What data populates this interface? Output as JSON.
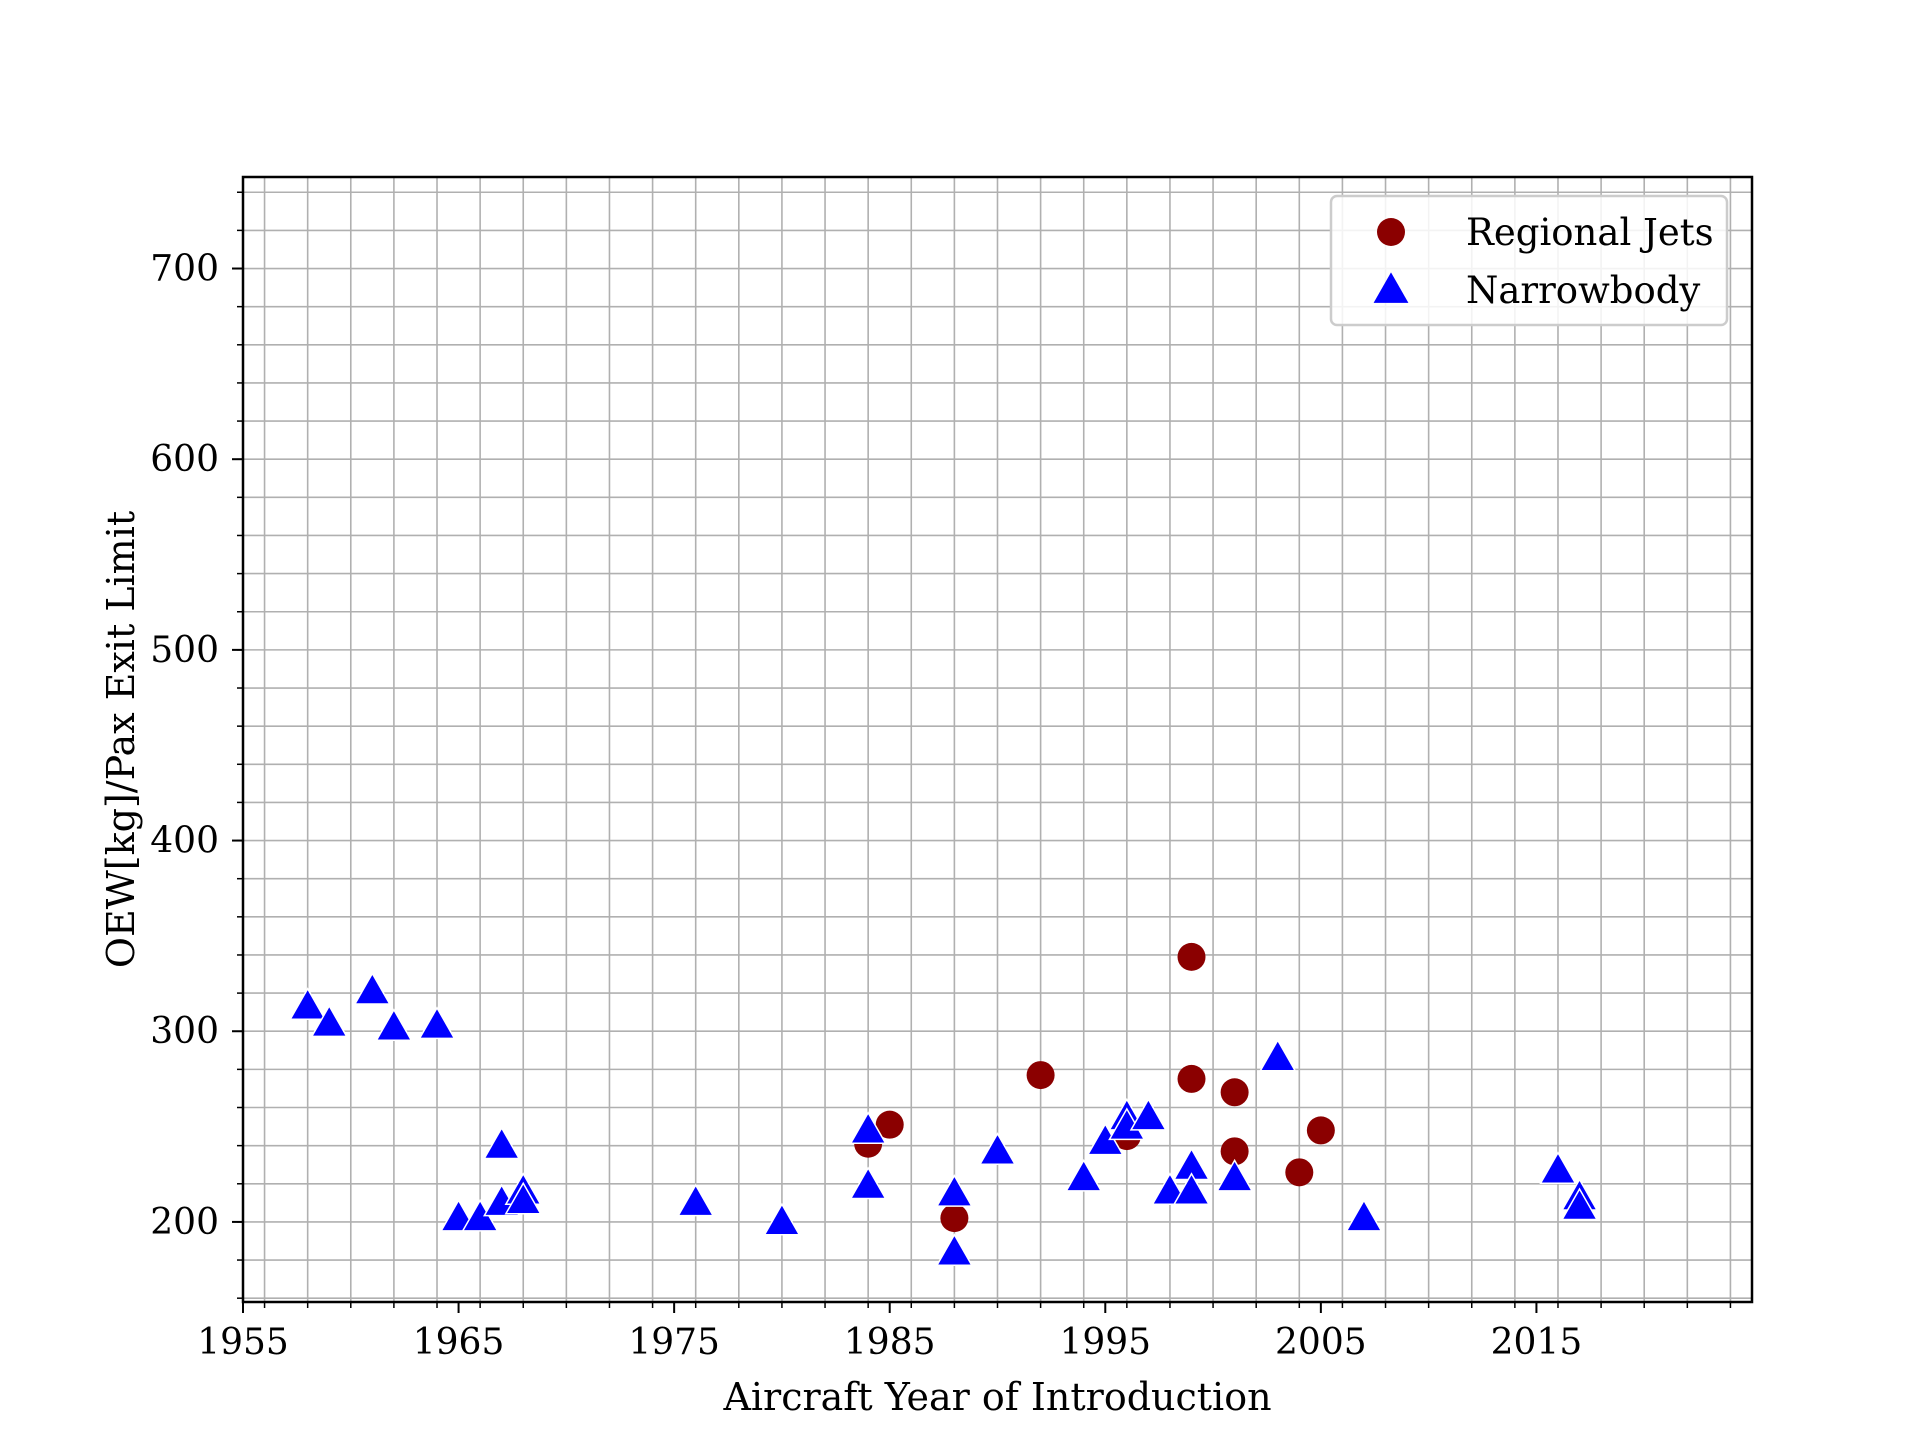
{
  "chart_data": {
    "type": "scatter",
    "title": "",
    "xlabel": "Aircraft Year of Introduction",
    "ylabel": "OEW[kg]/Pax Exit Limit",
    "xlim": [
      1955,
      2025
    ],
    "ylim": [
      158,
      748
    ],
    "x_ticks": [
      1955,
      1965,
      1975,
      1985,
      1995,
      2005,
      2015
    ],
    "y_ticks": [
      200,
      300,
      400,
      500,
      600,
      700
    ],
    "grid": true,
    "legend_position": "top-right",
    "series": [
      {
        "name": "Regional Jets",
        "marker": "circle",
        "color": "#8b0000",
        "points": [
          [
            1984,
            241
          ],
          [
            1985,
            251
          ],
          [
            1988,
            202
          ],
          [
            1992,
            277
          ],
          [
            1996,
            245
          ],
          [
            1999,
            339
          ],
          [
            1999,
            275
          ],
          [
            2001,
            268
          ],
          [
            2001,
            237
          ],
          [
            2004,
            226
          ],
          [
            2005,
            248
          ]
        ]
      },
      {
        "name": "Narrowbody",
        "marker": "triangle",
        "color": "#0000ff",
        "points": [
          [
            1958,
            313
          ],
          [
            1959,
            304
          ],
          [
            1961,
            321
          ],
          [
            1962,
            302
          ],
          [
            1964,
            303
          ],
          [
            1965,
            202
          ],
          [
            1966,
            202
          ],
          [
            1967,
            240
          ],
          [
            1967,
            210
          ],
          [
            1968,
            216
          ],
          [
            1968,
            211
          ],
          [
            1976,
            210
          ],
          [
            1980,
            200
          ],
          [
            1984,
            248
          ],
          [
            1984,
            219
          ],
          [
            1988,
            215
          ],
          [
            1988,
            184
          ],
          [
            1990,
            237
          ],
          [
            1994,
            223
          ],
          [
            1995,
            242
          ],
          [
            1996,
            255
          ],
          [
            1996,
            250
          ],
          [
            1997,
            255
          ],
          [
            1998,
            216
          ],
          [
            1999,
            229
          ],
          [
            1999,
            216
          ],
          [
            2001,
            223
          ],
          [
            2003,
            286
          ],
          [
            2007,
            202
          ],
          [
            2016,
            227
          ],
          [
            2017,
            213
          ],
          [
            2017,
            208
          ]
        ]
      }
    ]
  }
}
